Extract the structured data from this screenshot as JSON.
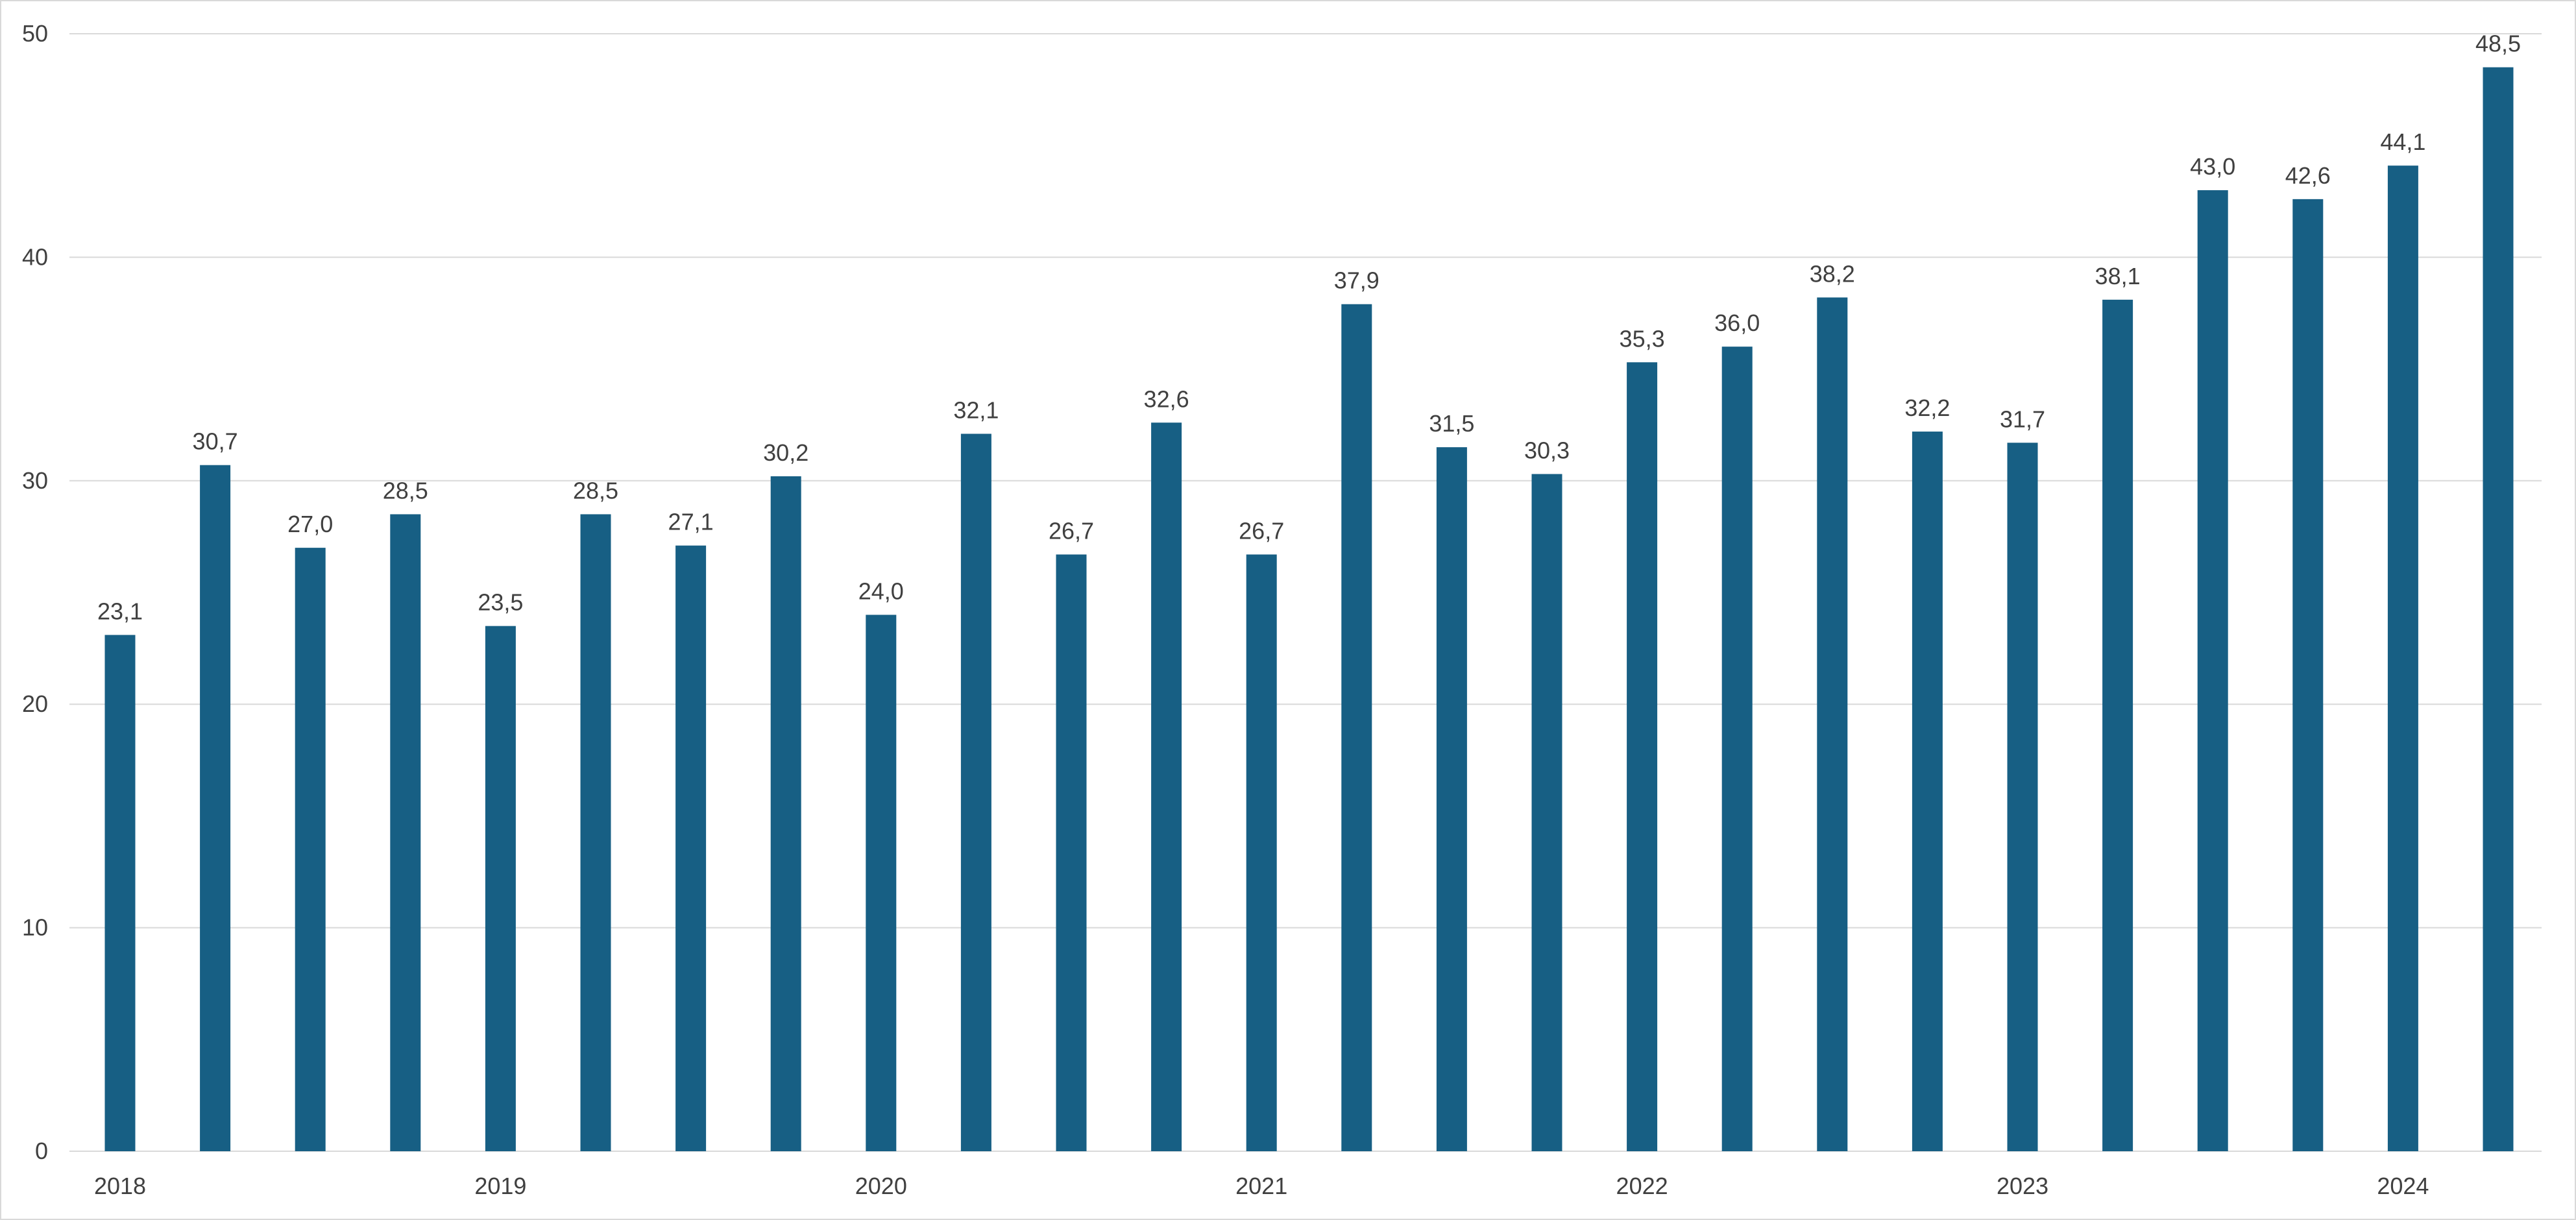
{
  "chart_data": {
    "type": "bar",
    "title": "",
    "xlabel": "",
    "ylabel": "",
    "ylim": [
      0,
      50
    ],
    "yticks": [
      0,
      10,
      20,
      30,
      40,
      50
    ],
    "grid": true,
    "legend": "none",
    "x_tick_labels": [
      {
        "label": "2018",
        "index": 0
      },
      {
        "label": "2019",
        "index": 4
      },
      {
        "label": "2020",
        "index": 8
      },
      {
        "label": "2021",
        "index": 12
      },
      {
        "label": "2022",
        "index": 16
      },
      {
        "label": "2023",
        "index": 20
      },
      {
        "label": "2024",
        "index": 24
      }
    ],
    "series": [
      {
        "values": [
          23.1,
          30.7,
          27.0,
          28.5,
          23.5,
          28.5,
          27.1,
          30.2,
          24.0,
          32.1,
          26.7,
          32.6,
          26.7,
          37.9,
          31.5,
          30.3,
          35.3,
          36.0,
          38.2,
          32.2,
          31.7,
          38.1,
          43.0,
          42.6,
          44.1,
          48.5
        ],
        "value_labels": [
          "23,1",
          "30,7",
          "27,0",
          "28,5",
          "23,5",
          "28,5",
          "27,1",
          "30,2",
          "24,0",
          "32,1",
          "26,7",
          "32,6",
          "26,7",
          "37,9",
          "31,5",
          "30,3",
          "35,3",
          "36,0",
          "38,2",
          "32,2",
          "31,7",
          "38,1",
          "43,0",
          "42,6",
          "44,1",
          "48,5"
        ],
        "color": "#175f84"
      }
    ],
    "colors": {
      "bar": "#175f84",
      "gridline": "#d9d9d9",
      "text": "#404040",
      "frame": "#d9d9d9"
    }
  }
}
